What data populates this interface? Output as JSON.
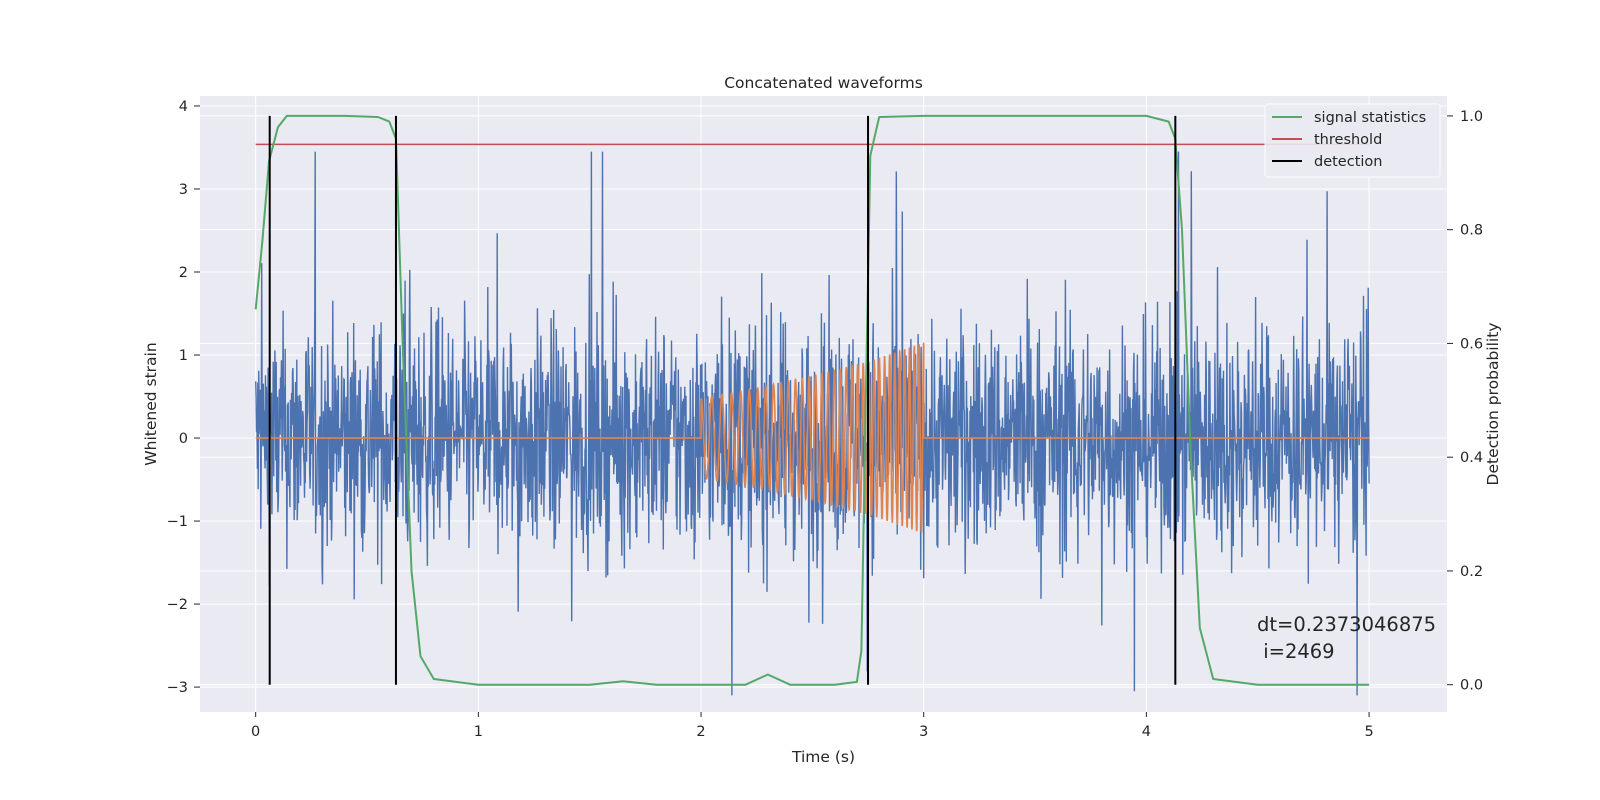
{
  "chart_data": {
    "type": "line",
    "title": "Concatenated waveforms",
    "xlabel": "Time (s)",
    "ylabel": "Whitened strain",
    "y2label": "Detection probability",
    "xlim": [
      -0.25,
      5.35
    ],
    "ylim": [
      -3.3,
      4.12
    ],
    "y2lim": [
      -0.048,
      1.035
    ],
    "x_ticks": [
      0,
      1,
      2,
      3,
      4,
      5
    ],
    "x_tick_labels": [
      "0",
      "1",
      "2",
      "3",
      "4",
      "5"
    ],
    "y_ticks": [
      -3,
      -2,
      -1,
      0,
      1,
      2,
      3,
      4
    ],
    "y_tick_labels": [
      "−3",
      "−2",
      "−1",
      "0",
      "1",
      "2",
      "3",
      "4"
    ],
    "y2_ticks": [
      0.0,
      0.2,
      0.4,
      0.6,
      0.8,
      1.0
    ],
    "y2_tick_labels": [
      "0.0",
      "0.2",
      "0.4",
      "0.6",
      "0.8",
      "1.0"
    ],
    "grid": true,
    "legend_position": "top-right",
    "colors": {
      "background": "#eaeaf2",
      "grid": "#ffffff",
      "strain": "#4c72b0",
      "waveform": "#dd8452",
      "signal_statistics": "#55a868",
      "threshold": "#c44e52",
      "detection": "#000000"
    },
    "series": [
      {
        "name": "",
        "role": "whitened-strain",
        "axis": "left",
        "x_range": [
          0,
          5
        ],
        "spread": 1.1,
        "peak_min": -3.1,
        "peak_max": 3.45
      },
      {
        "name": "",
        "role": "injected-waveform",
        "axis": "left",
        "x": [
          0,
          2,
          2,
          2.25,
          2.5,
          2.75,
          3,
          3,
          5
        ],
        "amplitude": [
          0,
          0,
          0.48,
          0.6,
          0.75,
          0.92,
          1.15,
          0,
          0
        ]
      },
      {
        "name": "signal statistics",
        "role": "signal-statistics",
        "axis": "right",
        "x": [
          0,
          0.03,
          0.06,
          0.1,
          0.14,
          0.2,
          0.4,
          0.55,
          0.6,
          0.63,
          0.66,
          0.7,
          0.74,
          0.8,
          1.0,
          1.5,
          1.65,
          1.8,
          2.0,
          2.2,
          2.3,
          2.4,
          2.6,
          2.7,
          2.72,
          2.74,
          2.76,
          2.8,
          3.0,
          3.5,
          4.0,
          4.1,
          4.13,
          4.16,
          4.2,
          4.24,
          4.3,
          4.5,
          5.0
        ],
        "values": [
          0.66,
          0.78,
          0.92,
          0.98,
          1.0,
          1.0,
          1.0,
          0.998,
          0.99,
          0.96,
          0.6,
          0.2,
          0.05,
          0.01,
          0.0,
          0.0,
          0.006,
          0.0,
          0.0,
          0.0,
          0.018,
          0.0,
          0.0,
          0.005,
          0.06,
          0.5,
          0.93,
          0.998,
          1.0,
          1.0,
          1.0,
          0.99,
          0.96,
          0.8,
          0.4,
          0.1,
          0.01,
          0.0,
          0.0
        ]
      },
      {
        "name": "threshold",
        "role": "threshold",
        "axis": "right",
        "x": [
          0,
          5
        ],
        "values": [
          0.95,
          0.95
        ]
      },
      {
        "name": "detection",
        "role": "detection",
        "axis": "right",
        "x": [
          0.063,
          0.63,
          2.75,
          4.13
        ],
        "y_range": [
          0.0,
          1.0
        ]
      }
    ],
    "legend": [
      "signal statistics",
      "threshold",
      "detection"
    ],
    "annotation": {
      "line1": "dt=0.2373046875",
      "line2": " i=2469"
    }
  }
}
